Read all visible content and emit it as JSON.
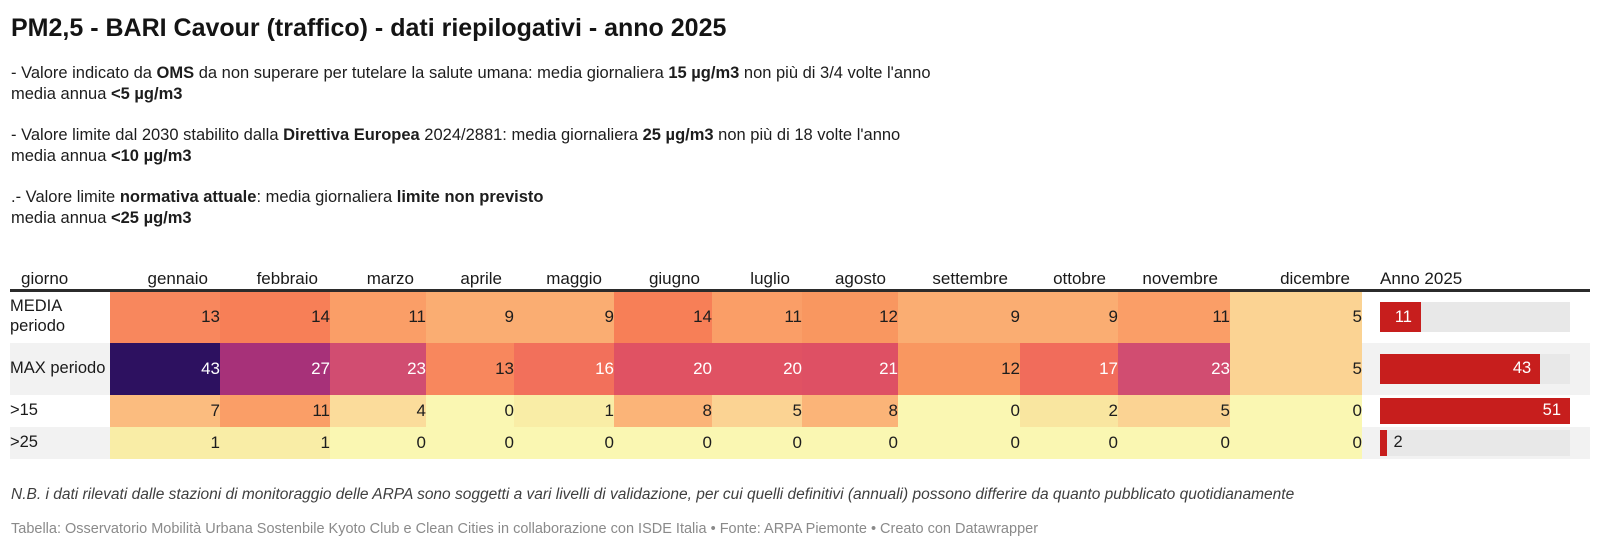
{
  "page": {
    "title": "PM2,5 - BARI Cavour (traffico) - dati riepilogativi - anno 2025",
    "intro": {
      "p1": {
        "s1": "- Valore indicato da ",
        "s2": "OMS",
        "s3": " da non superare per tutelare la salute umana: media giornaliera ",
        "s4": "15 µg/m3",
        "s5": " non più di 3/4 volte l'anno",
        "l2a": "media annua ",
        "l2b": "<5 µg/m3"
      },
      "p2": {
        "s1": "- Valore limite dal 2030 stabilito dalla ",
        "s2": "Direttiva Europea",
        "s3": " 2024/2881: media giornaliera ",
        "s4": "25 µg/m3",
        "s5": " non più di 18 volte l'anno",
        "l2a": "media annua ",
        "l2b": "<10 µg/m3"
      },
      "p3": {
        "s1": ".- Valore limite ",
        "s2": "normativa attuale",
        "s3": ": media giornaliera ",
        "s4": "limite non previsto",
        "l2a": "media annua ",
        "l2b": "<25 µg/m3"
      }
    },
    "note": "N.B. i dati rilevati dalle stazioni di monitoraggio delle ARPA sono soggetti a vari livelli di validazione, per cui quelli definitivi (annuali) possono differire da quanto pubblicato quotidianamente",
    "caption": "Tabella: Osservatorio Mobilità Urbana Sostenbile Kyoto Club e Clean Cities in collaborazione con ISDE Italia • Fonte: ARPA Piemonte • Creato con Datawrapper"
  },
  "chart_data": {
    "type": "table",
    "title": "PM2,5 - BARI Cavour (traffico) - dati riepilogativi - anno 2025",
    "columns": [
      "giorno",
      "gennaio",
      "febbraio",
      "marzo",
      "aprile",
      "maggio",
      "giugno",
      "luglio",
      "agosto",
      "settembre",
      "ottobre",
      "novembre",
      "dicembre",
      "Anno 2025"
    ],
    "rows": [
      {
        "label": "MEDIA periodo",
        "values": [
          13,
          14,
          11,
          9,
          9,
          14,
          11,
          12,
          9,
          9,
          11,
          5
        ],
        "anno": 11
      },
      {
        "label": "MAX periodo",
        "values": [
          43,
          27,
          23,
          13,
          16,
          20,
          20,
          21,
          12,
          17,
          23,
          5
        ],
        "anno": 43
      },
      {
        "label": ">15",
        "values": [
          7,
          11,
          4,
          0,
          1,
          8,
          5,
          8,
          0,
          2,
          5,
          0
        ],
        "anno": 51
      },
      {
        "label": ">25",
        "values": [
          1,
          1,
          0,
          0,
          0,
          0,
          0,
          0,
          0,
          0,
          0,
          0
        ],
        "anno": 2
      }
    ],
    "bar_max": 51,
    "colors": {
      "bar": "#C71E1D",
      "bar_track": "#E8E8E8",
      "white_text_from": 15,
      "heatmap": {
        "0": "#FAF7B2",
        "1": "#F9EDA6",
        "2": "#F9E6A0",
        "4": "#FBDC9B",
        "5": "#FBD393",
        "7": "#FBBC7F",
        "8": "#FBB478",
        "9": "#FAAD72",
        "11": "#FA9E67",
        "12": "#F99760",
        "13": "#F8875D",
        "14": "#F77F57",
        "16": "#F2705B",
        "17": "#F16C5B",
        "20": "#E05263",
        "21": "#DE5064",
        "23": "#D14D71",
        "27": "#A73179",
        "43": "#2D1160"
      }
    }
  }
}
